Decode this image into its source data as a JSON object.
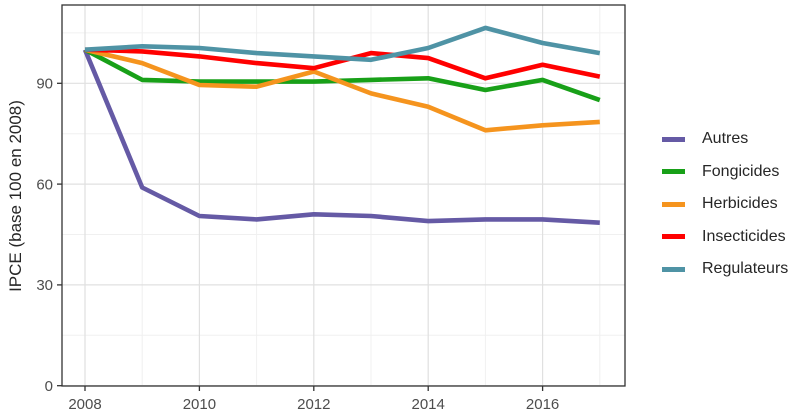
{
  "chart_data": {
    "type": "line",
    "title": "",
    "xlabel": "",
    "ylabel": "IPCE (base 100 en 2008)",
    "x": [
      2008,
      2009,
      2010,
      2011,
      2012,
      2013,
      2014,
      2015,
      2016,
      2017
    ],
    "x_ticks": [
      2008,
      2010,
      2012,
      2014,
      2016
    ],
    "y_ticks": [
      0,
      30,
      60,
      90
    ],
    "ylim": [
      0,
      113
    ],
    "xlim": [
      2007.6,
      2017.45
    ],
    "grid": "major and minor gridlines, light grey on white, panel framed with dark border",
    "legend_position": "right, vertically centered",
    "axis_text_color": "#4d4d4d",
    "axis_title_color": "#262626",
    "panel_border_color": "#333333",
    "major_grid_color": "#e0e0e0",
    "minor_grid_color": "#f0f0f0",
    "series": [
      {
        "name": "Autres",
        "color": "#655AA5",
        "values": [
          100,
          59,
          50.5,
          49.5,
          51,
          50.5,
          49,
          49.5,
          49.5,
          48.5
        ]
      },
      {
        "name": "Fongicides",
        "color": "#18A018",
        "values": [
          100,
          91,
          90.5,
          90.5,
          90.5,
          91,
          91.5,
          88,
          91,
          85
        ]
      },
      {
        "name": "Herbicides",
        "color": "#F5941E",
        "values": [
          100,
          96,
          89.5,
          89,
          93.5,
          87,
          83,
          76,
          77.5,
          78.5
        ]
      },
      {
        "name": "Insecticides",
        "color": "#FF0000",
        "values": [
          100,
          99.5,
          98,
          96,
          94.5,
          99,
          97.5,
          91.5,
          95.5,
          92
        ]
      },
      {
        "name": "Regulateurs",
        "color": "#4F93A5",
        "values": [
          100,
          101,
          100.5,
          99,
          98,
          97,
          100.5,
          106.5,
          102,
          99
        ]
      }
    ]
  }
}
